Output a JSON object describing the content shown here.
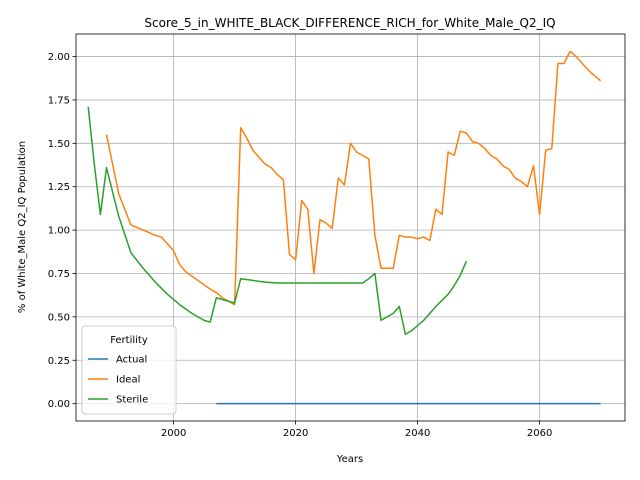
{
  "chart_data": {
    "type": "line",
    "title": "Score_5_in_WHITE_BLACK_DIFFERENCE_RICH_for_White_Male_Q2_IQ",
    "xlabel": "Years",
    "ylabel": "% of White_Male Q2_IQ Population",
    "xlim": [
      1984,
      2074
    ],
    "ylim": [
      -0.1,
      2.13
    ],
    "xticks": [
      2000,
      2020,
      2040,
      2060
    ],
    "yticks": [
      0.0,
      0.25,
      0.5,
      0.75,
      1.0,
      1.25,
      1.5,
      1.75,
      2.0
    ],
    "xtick_labels": [
      "2000",
      "2020",
      "2040",
      "2060"
    ],
    "ytick_labels": [
      "0.00",
      "0.25",
      "0.50",
      "0.75",
      "1.00",
      "1.25",
      "1.50",
      "1.75",
      "2.00"
    ],
    "grid": true,
    "legend": {
      "title": "Fertility",
      "placement": "lower-left"
    },
    "series": [
      {
        "name": "Actual",
        "color": "#1f77b4",
        "x": [
          2007,
          2070
        ],
        "y": [
          0.0,
          0.0
        ]
      },
      {
        "name": "Ideal",
        "color": "#ff7f0e",
        "x": [
          1989,
          1991,
          1993,
          1995,
          1997,
          1998,
          2000,
          2001,
          2002,
          2004,
          2006,
          2007,
          2008,
          2010,
          2011,
          2012,
          2013,
          2014,
          2015,
          2016,
          2017,
          2018,
          2019,
          2020,
          2021,
          2022,
          2023,
          2024,
          2025,
          2026,
          2027,
          2028,
          2029,
          2030,
          2031,
          2032,
          2033,
          2034,
          2035,
          2036,
          2037,
          2038,
          2039,
          2040,
          2041,
          2042,
          2043,
          2044,
          2045,
          2046,
          2047,
          2048,
          2049,
          2050,
          2051,
          2052,
          2053,
          2054,
          2055,
          2056,
          2057,
          2058,
          2059,
          2060,
          2061,
          2062,
          2063,
          2064,
          2065,
          2066,
          2068,
          2070
        ],
        "y": [
          1.55,
          1.21,
          1.03,
          1.0,
          0.97,
          0.96,
          0.88,
          0.8,
          0.76,
          0.71,
          0.66,
          0.64,
          0.61,
          0.57,
          1.59,
          1.53,
          1.46,
          1.42,
          1.38,
          1.36,
          1.32,
          1.29,
          0.86,
          0.83,
          1.17,
          1.12,
          0.75,
          1.06,
          1.04,
          1.01,
          1.3,
          1.26,
          1.5,
          1.45,
          1.43,
          1.41,
          0.97,
          0.78,
          0.78,
          0.78,
          0.97,
          0.96,
          0.96,
          0.95,
          0.96,
          0.94,
          1.12,
          1.09,
          1.45,
          1.43,
          1.57,
          1.56,
          1.51,
          1.5,
          1.47,
          1.43,
          1.41,
          1.37,
          1.35,
          1.3,
          1.28,
          1.25,
          1.37,
          1.09,
          1.46,
          1.47,
          1.96,
          1.96,
          2.03,
          2.0,
          1.92,
          1.86
        ]
      },
      {
        "name": "Sterile",
        "color": "#2ca02c",
        "x": [
          1986,
          1987,
          1988,
          1989,
          1990,
          1991,
          1993,
          1995,
          1997,
          1999,
          2000,
          2001,
          2003,
          2005,
          2006,
          2007,
          2008,
          2009,
          2010,
          2011,
          2013,
          2015,
          2017,
          2020,
          2025,
          2030,
          2031,
          2032,
          2033,
          2034,
          2035,
          2036,
          2037,
          2038,
          2039,
          2041,
          2042,
          2043,
          2045,
          2046,
          2047,
          2048
        ],
        "y": [
          1.71,
          1.38,
          1.09,
          1.36,
          1.22,
          1.08,
          0.87,
          0.78,
          0.7,
          0.63,
          0.6,
          0.57,
          0.52,
          0.48,
          0.47,
          0.61,
          0.6,
          0.59,
          0.58,
          0.72,
          0.71,
          0.7,
          0.695,
          0.695,
          0.695,
          0.695,
          0.695,
          0.72,
          0.75,
          0.48,
          0.5,
          0.52,
          0.56,
          0.4,
          0.42,
          0.48,
          0.52,
          0.56,
          0.63,
          0.68,
          0.74,
          0.82
        ]
      }
    ]
  }
}
